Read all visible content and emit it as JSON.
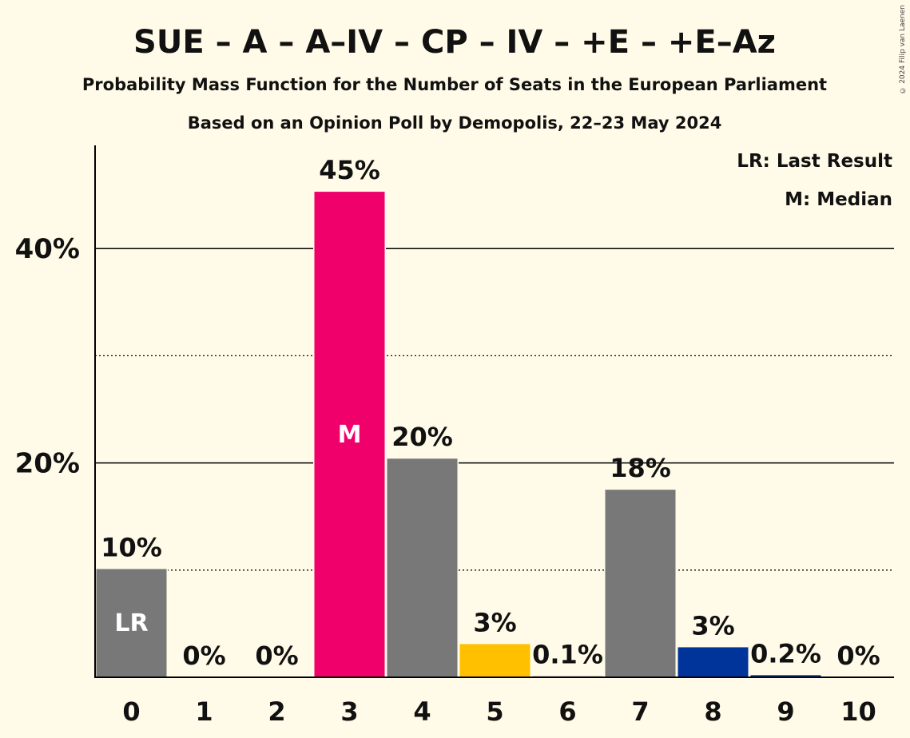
{
  "copyright": "© 2024 Filip van Laenen",
  "chart_data": {
    "type": "bar",
    "title": "SUE – A – A–IV – CP – IV – +E – +E–Az",
    "subtitle": "Probability Mass Function for the Number of Seats in the European Parliament",
    "subtitle2": "Based on an Opinion Poll by Demopolis, 22–23 May 2024",
    "categories": [
      "0",
      "1",
      "2",
      "3",
      "4",
      "5",
      "6",
      "7",
      "8",
      "9",
      "10"
    ],
    "values": [
      10.1,
      0,
      0,
      45.3,
      20.4,
      3.1,
      0.1,
      17.5,
      2.8,
      0.2,
      0
    ],
    "value_labels": [
      "10%",
      "0%",
      "0%",
      "45%",
      "20%",
      "3%",
      "0.1%",
      "18%",
      "3%",
      "0.2%",
      "0%"
    ],
    "bar_colors": [
      "#787878",
      "#787878",
      "#787878",
      "#f0006a",
      "#787878",
      "#ffc000",
      "#787878",
      "#787878",
      "#00349a",
      "#00349a",
      "#787878"
    ],
    "ylim": [
      0,
      49.5
    ],
    "y_ticks": [
      20,
      40
    ],
    "y_tick_labels": [
      "20%",
      "40%"
    ],
    "minor_gridlines": [
      10,
      30
    ],
    "bar_markers": [
      {
        "index": 0,
        "label": "LR"
      },
      {
        "index": 3,
        "label": "M"
      }
    ],
    "legend": {
      "placement": "top-right",
      "entries": [
        "LR: Last Result",
        "M: Median"
      ]
    }
  }
}
